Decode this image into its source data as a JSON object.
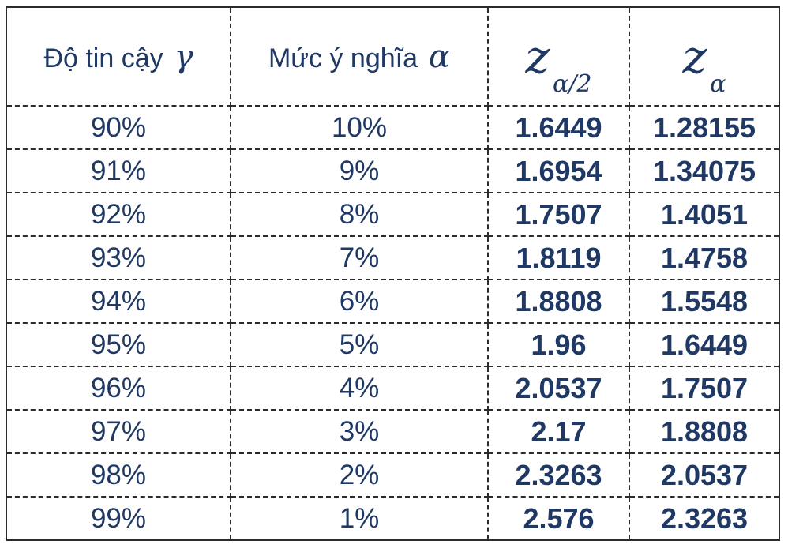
{
  "colors": {
    "text": "#1f3864",
    "border": "#2b2b2b",
    "background": "#ffffff"
  },
  "table": {
    "headers": {
      "confidence_label": "Độ tin cậy",
      "confidence_symbol": "γ",
      "significance_label": "Mức ý nghĩa",
      "significance_symbol": "α",
      "z_half_base": "z",
      "z_half_sub": "α/2",
      "z_base": "z",
      "z_sub": "α"
    },
    "rows": [
      {
        "confidence": "90%",
        "alpha": "10%",
        "z_half": "1.6449",
        "z": "1.28155"
      },
      {
        "confidence": "91%",
        "alpha": "9%",
        "z_half": "1.6954",
        "z": "1.34075"
      },
      {
        "confidence": "92%",
        "alpha": "8%",
        "z_half": "1.7507",
        "z": "1.4051"
      },
      {
        "confidence": "93%",
        "alpha": "7%",
        "z_half": "1.8119",
        "z": "1.4758"
      },
      {
        "confidence": "94%",
        "alpha": "6%",
        "z_half": "1.8808",
        "z": "1.5548"
      },
      {
        "confidence": "95%",
        "alpha": "5%",
        "z_half": "1.96",
        "z": "1.6449"
      },
      {
        "confidence": "96%",
        "alpha": "4%",
        "z_half": "2.0537",
        "z": "1.7507"
      },
      {
        "confidence": "97%",
        "alpha": "3%",
        "z_half": "2.17",
        "z": "1.8808"
      },
      {
        "confidence": "98%",
        "alpha": "2%",
        "z_half": "2.3263",
        "z": "2.0537"
      },
      {
        "confidence": "99%",
        "alpha": "1%",
        "z_half": "2.576",
        "z": "2.3263"
      }
    ]
  }
}
